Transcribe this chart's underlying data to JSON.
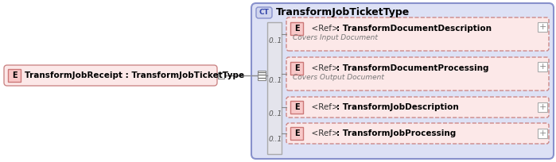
{
  "main_element_label": "TransformJobReceipt : TransformJobTicketType",
  "ct_label": "TransformJobTicketType",
  "rows": [
    {
      "label": ": TransformDocumentDescription",
      "annotation": "Covers Input Document",
      "has_plus": true
    },
    {
      "label": ": TransformDocumentProcessing",
      "annotation": "Covers Output Document",
      "has_plus": true
    },
    {
      "label": ": TransformJobDescription",
      "annotation": "",
      "has_plus": true
    },
    {
      "label": ": TransformJobProcessing",
      "annotation": "",
      "has_plus": true
    }
  ],
  "e_box_fill": "#f8c8c8",
  "e_box_border": "#cc7777",
  "main_box_fill": "#fce8e8",
  "main_box_border": "#cc8888",
  "ct_box_fill": "#dde1f5",
  "ct_box_border": "#8891cc",
  "ct_badge_fill": "#d0d5ee",
  "ct_badge_border": "#8891cc",
  "row_fill": "#fce8e8",
  "row_border": "#cc8888",
  "bar_fill": "#e4e4ec",
  "bar_border": "#aaaaaa",
  "line_color": "#888888",
  "text_color": "#000000",
  "annotation_color": "#777777",
  "plus_fill": "#ffffff",
  "plus_border": "#aaaaaa"
}
